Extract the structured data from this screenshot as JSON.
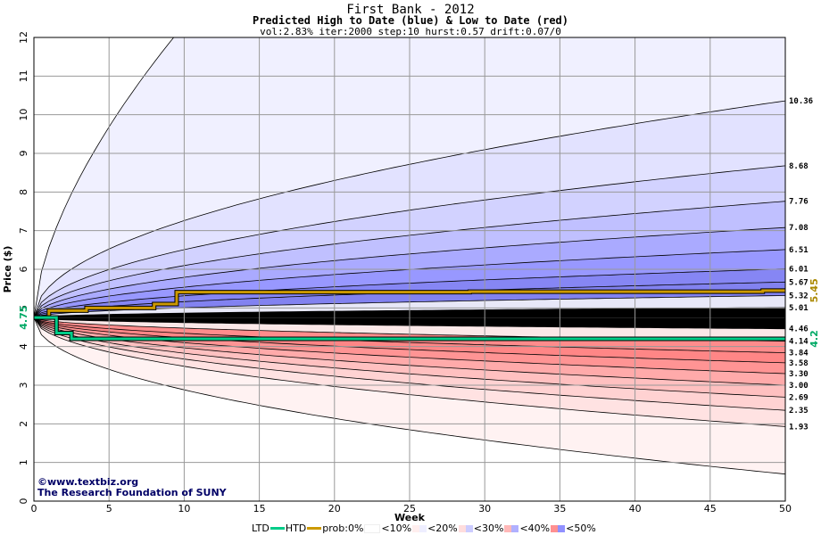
{
  "header": {
    "title": "First Bank - 2012",
    "subtitle": "Predicted High to Date (blue) &  Low to Date (red)",
    "params": "vol:2.83% iter:2000 step:10 hurst:0.57 drift:0.07/0"
  },
  "footer": {
    "copyright": "©www.textbiz.org",
    "org": "The Research Foundation of SUNY"
  },
  "legend": {
    "ltd": "LTD",
    "htd": "HTD",
    "prob": "prob:0%",
    "lt10": "<10%",
    "lt20": "<20%",
    "lt30": "<30%",
    "lt40": "<40%",
    "lt50": "<50%",
    "colors": {
      "ltd": "#00cc88",
      "htd": "#cc9900"
    }
  },
  "chart_data": {
    "type": "area",
    "xlabel": "Week",
    "ylabel": "Price ($)",
    "xlim": [
      0,
      50
    ],
    "ylim": [
      0,
      12
    ],
    "xticks": [
      0,
      5,
      10,
      15,
      20,
      25,
      30,
      35,
      40,
      45,
      50
    ],
    "yticks": [
      0,
      1,
      2,
      3,
      4,
      5,
      6,
      7,
      8,
      9,
      10,
      11,
      12
    ],
    "start_price": "4.75",
    "current_high": "5.45",
    "current_low": "4.2",
    "high_percentile_end_values": [
      "10.36",
      "8.68",
      "7.76",
      "7.08",
      "6.51",
      "6.01",
      "5.67",
      "5.32",
      "5.01"
    ],
    "low_percentile_end_values": [
      "4.46",
      "4.14",
      "3.84",
      "3.58",
      "3.30",
      "3.00",
      "2.69",
      "2.35",
      "1.93"
    ],
    "high_to_date_steps": [
      [
        0,
        4.75
      ],
      [
        1,
        4.93
      ],
      [
        3.5,
        5.0
      ],
      [
        8,
        5.1
      ],
      [
        9.5,
        5.41
      ],
      [
        29,
        5.42
      ],
      [
        48.5,
        5.45
      ],
      [
        50,
        5.45
      ]
    ],
    "low_to_date_steps": [
      [
        0,
        4.75
      ],
      [
        1.5,
        4.35
      ],
      [
        2.5,
        4.2
      ],
      [
        50,
        4.2
      ]
    ],
    "colors": {
      "blue_bands": [
        "#eeeeff",
        "#ddddff",
        "#ccccff",
        "#b8b8ff",
        "#a0a0ff",
        "#8888ff",
        "#7777ee"
      ],
      "red_bands": [
        "#ffeeee",
        "#ffdddd",
        "#ffcccc",
        "#ffb0b0",
        "#ff9999",
        "#ff8080",
        "#ff7777"
      ]
    }
  }
}
